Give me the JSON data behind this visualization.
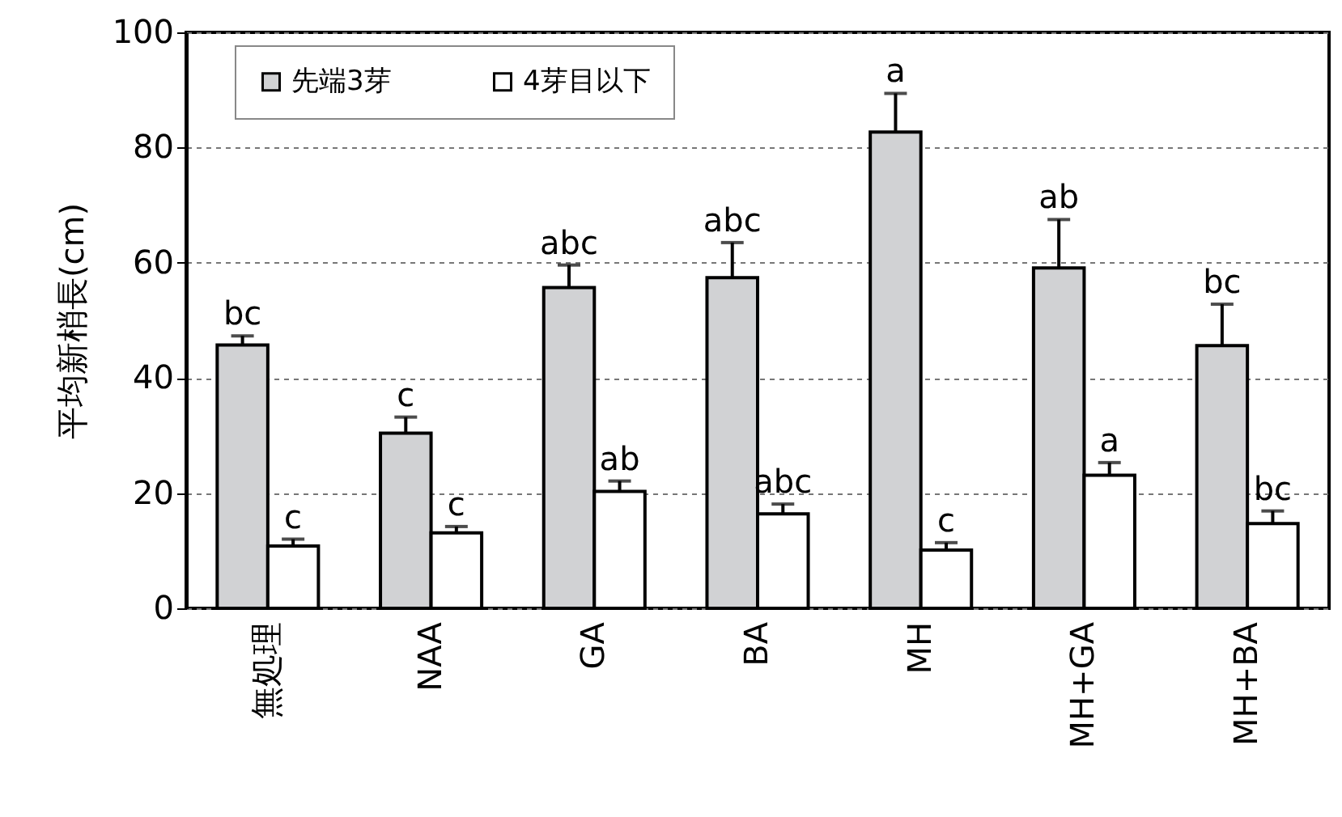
{
  "chart_data": {
    "type": "bar",
    "ylabel": "平均新梢長(cm)",
    "categories": [
      "無処理",
      "NAA",
      "GA",
      "BA",
      "MH",
      "MH+GA",
      "MH+BA"
    ],
    "series": [
      {
        "name": "先端3芽",
        "color": "#d1d2d4",
        "values": [
          45.7,
          30.4,
          55.7,
          57.4,
          82.7,
          59.1,
          45.6
        ],
        "errors": [
          [
            45.7,
            47.3
          ],
          [
            30.4,
            33.2
          ],
          [
            55.7,
            59.6
          ],
          [
            57.4,
            63.5
          ],
          [
            82.7,
            89.4
          ],
          [
            59.1,
            67.5
          ],
          [
            45.6,
            52.8
          ]
        ],
        "value_labels": [
          "bc",
          "c",
          "abc",
          "abc",
          "a",
          "ab",
          "bc"
        ]
      },
      {
        "name": "4芽目以下",
        "color": "#ffffff",
        "values": [
          10.8,
          13.1,
          20.3,
          16.4,
          10.1,
          23.1,
          14.7
        ],
        "errors": [
          [
            10.8,
            12.0
          ],
          [
            13.1,
            14.2
          ],
          [
            20.3,
            22.1
          ],
          [
            16.4,
            18.1
          ],
          [
            10.1,
            11.4
          ],
          [
            23.1,
            25.3
          ],
          [
            14.7,
            16.9
          ]
        ],
        "value_labels": [
          "c",
          "c",
          "ab",
          "abc",
          "c",
          "a",
          "bc"
        ]
      }
    ],
    "ylim": [
      0,
      100
    ],
    "yticks": [
      0,
      20,
      40,
      60,
      80,
      100
    ],
    "grid": "y",
    "legend": "top left"
  }
}
